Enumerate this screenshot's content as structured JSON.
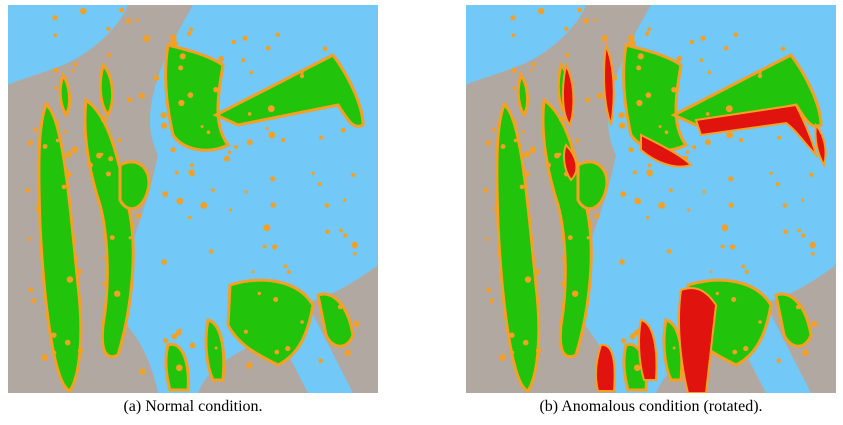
{
  "figure": {
    "panels": [
      {
        "caption": "(a) Normal condition."
      },
      {
        "caption": "(b) Anomalous condition (rotated)."
      }
    ]
  }
}
